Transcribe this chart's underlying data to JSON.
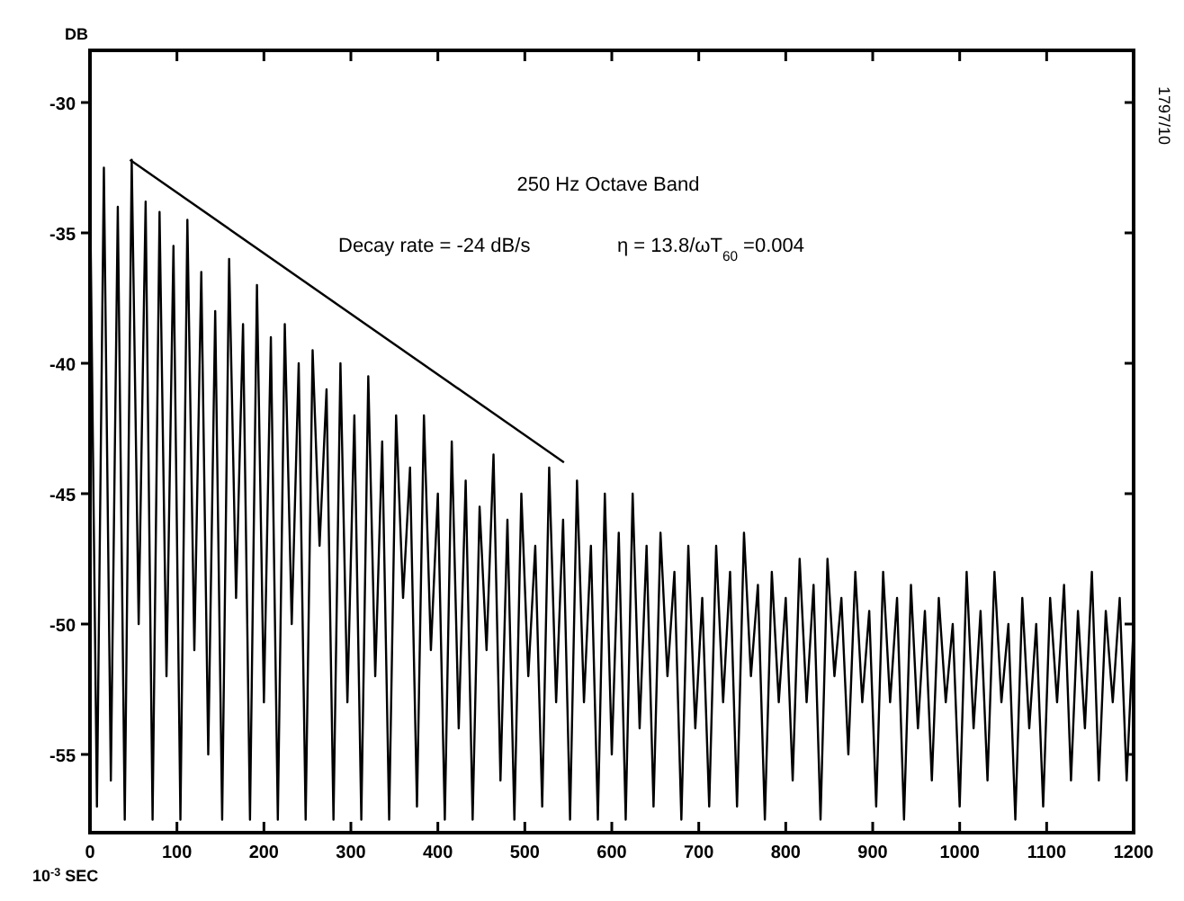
{
  "chart_data": {
    "type": "line",
    "ylabel": "DB",
    "xlabel": "10$^{-3}$ SEC",
    "annotations": [
      "250 Hz Octave Band",
      "Decay rate = -24 dB/s",
      "η = 13.8/ωT$_{60}$ =0.004",
      "1797/10"
    ],
    "xlim": [
      0,
      1200
    ],
    "xticks": [
      0,
      100,
      200,
      300,
      400,
      500,
      600,
      700,
      800,
      900,
      1000,
      1100,
      1200
    ],
    "ylim": [
      -58,
      -28
    ],
    "yticks": [
      -30,
      -35,
      -40,
      -45,
      -50,
      -55
    ],
    "grid": false,
    "marker": "none",
    "series": [
      {
        "color": "#000000",
        "x": [
          0,
          8,
          16,
          24,
          32,
          40,
          48,
          56,
          64,
          72,
          80,
          88,
          96,
          104,
          112,
          120,
          128,
          136,
          144,
          152,
          160,
          168,
          176,
          184,
          192,
          200,
          208,
          216,
          224,
          232,
          240,
          248,
          256,
          264,
          272,
          280,
          288,
          296,
          304,
          312,
          320,
          328,
          336,
          344,
          352,
          360,
          368,
          376,
          384,
          392,
          400,
          408,
          416,
          424,
          432,
          440,
          448,
          456,
          464,
          472,
          480,
          488,
          496,
          504,
          512,
          520,
          528,
          536,
          544,
          552,
          560,
          568,
          576,
          584,
          592,
          600,
          608,
          616,
          624,
          632,
          640,
          648,
          656,
          664,
          672,
          680,
          688,
          696,
          704,
          712,
          720,
          728,
          736,
          744,
          752,
          760,
          768,
          776,
          784,
          792,
          800,
          808,
          816,
          824,
          832,
          840,
          848,
          856,
          864,
          872,
          880,
          888,
          896,
          904,
          912,
          920,
          928,
          936,
          944,
          952,
          960,
          968,
          976,
          984,
          992,
          1000,
          1008,
          1016,
          1024,
          1032,
          1040,
          1048,
          1056,
          1064,
          1072,
          1080,
          1088,
          1096,
          1104,
          1112,
          1120,
          1128,
          1136,
          1144,
          1152,
          1160,
          1168,
          1176,
          1184,
          1192,
          1200
        ],
        "values": [
          -33,
          -57,
          -32.5,
          -56,
          -34,
          -57.5,
          -32.2,
          -50,
          -33.8,
          -57.5,
          -34.2,
          -52,
          -35.5,
          -57.5,
          -34.5,
          -51,
          -36.5,
          -55,
          -38,
          -57.5,
          -36,
          -49,
          -38.5,
          -57.5,
          -37,
          -53,
          -39,
          -57.5,
          -38.5,
          -50,
          -40,
          -57.5,
          -39.5,
          -47,
          -41,
          -57.5,
          -40,
          -53,
          -42,
          -57.5,
          -40.5,
          -52,
          -43,
          -57.5,
          -42,
          -49,
          -44,
          -57,
          -42,
          -51,
          -45,
          -57.5,
          -43,
          -54,
          -44.5,
          -57.5,
          -45.5,
          -51,
          -43.5,
          -56,
          -46,
          -57.5,
          -45,
          -52,
          -47,
          -57,
          -44,
          -53,
          -46,
          -57.5,
          -44.5,
          -53,
          -47,
          -57.5,
          -45,
          -55,
          -46.5,
          -57.5,
          -45,
          -54,
          -47,
          -57,
          -46.5,
          -52,
          -48,
          -57.5,
          -47,
          -54,
          -49,
          -57,
          -47,
          -53,
          -48,
          -57,
          -46.5,
          -52,
          -48.5,
          -57.5,
          -48,
          -53,
          -49,
          -56,
          -47.5,
          -53,
          -48.5,
          -57.5,
          -47.5,
          -52,
          -49,
          -55,
          -48,
          -53,
          -49.5,
          -57,
          -48,
          -53,
          -49,
          -57.5,
          -48.5,
          -54,
          -49.5,
          -56,
          -49,
          -53,
          -50,
          -57,
          -48,
          -54,
          -49.5,
          -56,
          -48,
          -53,
          -50,
          -57.5,
          -49,
          -54,
          -50,
          -57,
          -49,
          -53,
          -48.5,
          -56,
          -49.5,
          -54,
          -48,
          -56,
          -49.5,
          -53,
          -49,
          -56,
          -50
        ]
      },
      {
        "type": "line",
        "color": "#000000",
        "x": [
          46,
          545
        ],
        "values": [
          -32.2,
          -43.8
        ]
      }
    ]
  }
}
